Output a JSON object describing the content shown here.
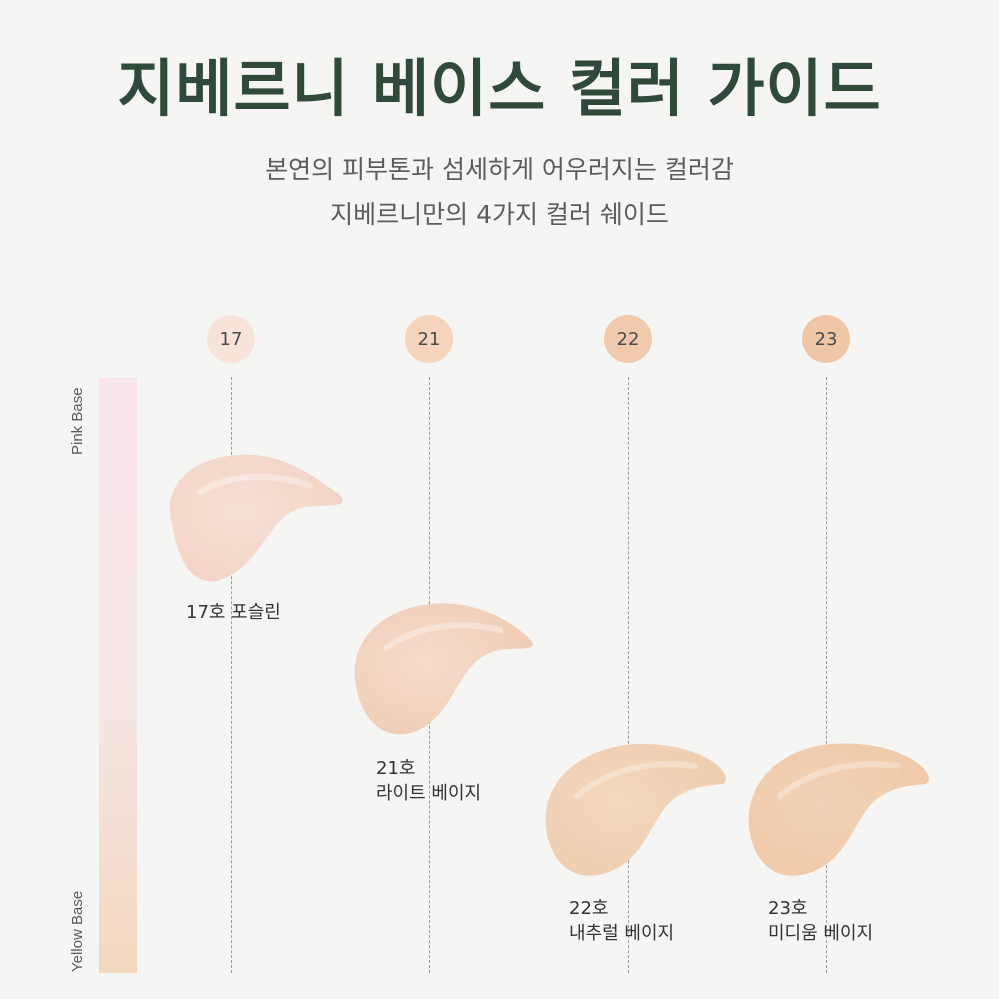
{
  "title": "지베르니 베이스 컬러 가이드",
  "subtitle_line1": "본연의 피부톤과 섬세하게 어우러지는 컬러감",
  "subtitle_line2": "지베르니만의 4가지 컬러 쉐이드",
  "axis": {
    "top_label": "Pink Base",
    "bottom_label": "Yellow Base"
  },
  "shades": [
    {
      "number": "17",
      "name_line1": "17호 포슬린",
      "name_line2": "",
      "circle_color": "#f8e3d8",
      "swatch_color": "#f1d2c3"
    },
    {
      "number": "21",
      "name_line1": "21호",
      "name_line2": "라이트 베이지",
      "circle_color": "#f5d3bc",
      "swatch_color": "#efcbb4"
    },
    {
      "number": "22",
      "name_line1": "22호",
      "name_line2": "내추럴 베이지",
      "circle_color": "#f1caad",
      "swatch_color": "#efccad"
    },
    {
      "number": "23",
      "name_line1": "23호",
      "name_line2": "미디움 베이지",
      "circle_color": "#efc7a6",
      "swatch_color": "#efc8a6"
    }
  ]
}
